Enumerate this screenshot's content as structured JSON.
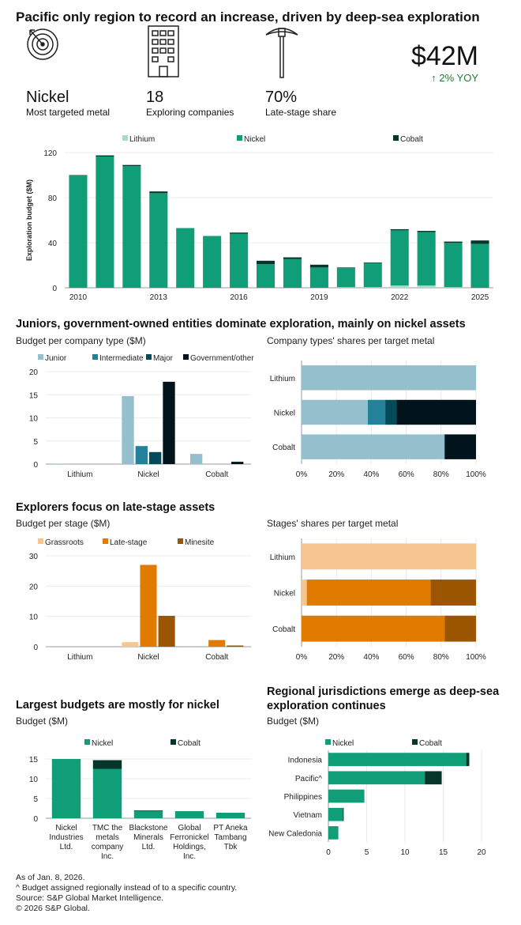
{
  "title": "Pacific only region to record an increase, driven by deep-sea exploration",
  "kpis": [
    {
      "icon": "target-icon",
      "value": "Nickel",
      "label": "Most targeted metal"
    },
    {
      "icon": "building-icon",
      "value": "18",
      "label": "Exploring companies"
    },
    {
      "icon": "pickaxe-icon",
      "value": "70%",
      "label": "Late-stage share"
    }
  ],
  "headline": {
    "value": "$42M",
    "change": "↑ 2% YOY",
    "change_color": "#1e7d32"
  },
  "colors": {
    "lithium": "#a3dcc8",
    "nickel": "#0f9e78",
    "cobalt": "#06352a",
    "junior": "#93c0cc",
    "intermediate": "#23829a",
    "major": "#034a5a",
    "government": "#02141b",
    "grassroots": "#f5c690",
    "late": "#e07b00",
    "minesite": "#9c5500"
  },
  "section2": {
    "title": "Juniors, government-owned entities dominate exploration, mainly on nickel assets",
    "left_sub": "Budget per company type ($M)",
    "right_sub": "Company types' shares per target metal"
  },
  "section3": {
    "title": "Explorers focus on late-stage assets",
    "left_sub": "Budget per stage ($M)",
    "right_sub": "Stages' shares per target metal"
  },
  "section4": {
    "left_title": "Largest budgets are mostly for nickel",
    "left_sub": "Budget ($M)",
    "right_title": "Regional jurisdictions emerge as deep-sea exploration continues",
    "right_sub": "Budget ($M)"
  },
  "footer": [
    "As of Jan. 8, 2026.",
    "^ Budget assigned regionally instead of to a specific country.",
    "Source: S&P Global Market Intelligence.",
    "© 2026 S&P Global."
  ],
  "chart_data": [
    {
      "id": "main",
      "type": "bar",
      "stacked": true,
      "ylabel": "Exploration budget ($M)",
      "ylim": [
        0,
        120
      ],
      "yticks": [
        0,
        40,
        80,
        120
      ],
      "categories": [
        "2010",
        "2011",
        "2012",
        "2013",
        "2014",
        "2015",
        "2016",
        "2017",
        "2018",
        "2019",
        "2020",
        "2021",
        "2022",
        "2023",
        "2024",
        "2025"
      ],
      "xtick_labels": [
        "2010",
        "",
        "",
        "2013",
        "",
        "",
        "2016",
        "",
        "",
        "2019",
        "",
        "",
        "2022",
        "",
        "",
        "2025"
      ],
      "series": [
        {
          "name": "Lithium",
          "color": "#a3dcc8",
          "values": [
            0,
            0,
            0,
            0,
            0,
            0,
            0,
            0,
            0,
            0,
            0.5,
            0.5,
            2,
            2,
            0.5,
            0
          ]
        },
        {
          "name": "Nickel",
          "color": "#0f9e78",
          "values": [
            99.5,
            116.5,
            108,
            84,
            53,
            46,
            48,
            21,
            25.5,
            18,
            17,
            21.5,
            49,
            47.5,
            39.5,
            39
          ]
        },
        {
          "name": "Cobalt",
          "color": "#06352a",
          "values": [
            0.5,
            1,
            1,
            1.5,
            0,
            0,
            1,
            3,
            1.5,
            2.5,
            0.5,
            0.5,
            1,
            1,
            1,
            3
          ]
        }
      ],
      "legend": "top",
      "grid": true
    },
    {
      "id": "ctype",
      "type": "bar",
      "grouped": true,
      "ylim": [
        0,
        20
      ],
      "yticks": [
        0,
        5,
        10,
        15,
        20
      ],
      "categories": [
        "Lithium",
        "Nickel",
        "Cobalt"
      ],
      "series": [
        {
          "name": "Junior",
          "color": "#93c0cc",
          "values": [
            0.1,
            14.7,
            2.2
          ]
        },
        {
          "name": "Intermediate",
          "color": "#23829a",
          "values": [
            0,
            3.9,
            0
          ]
        },
        {
          "name": "Major",
          "color": "#034a5a",
          "values": [
            0,
            2.6,
            0
          ]
        },
        {
          "name": "Government/other",
          "color": "#02141b",
          "values": [
            0,
            17.8,
            0.5
          ]
        }
      ],
      "legend": "top",
      "grid": true
    },
    {
      "id": "cshare",
      "type": "bar",
      "orientation": "horizontal",
      "stacked": true,
      "xlim": [
        0,
        100
      ],
      "xticks": [
        "0%",
        "20%",
        "40%",
        "60%",
        "80%",
        "100%"
      ],
      "categories": [
        "Lithium",
        "Nickel",
        "Cobalt"
      ],
      "series": [
        {
          "name": "Junior",
          "color": "#93c0cc",
          "values": [
            100,
            38,
            82
          ]
        },
        {
          "name": "Intermediate",
          "color": "#23829a",
          "values": [
            0,
            10,
            0
          ]
        },
        {
          "name": "Major",
          "color": "#034a5a",
          "values": [
            0,
            6.5,
            0
          ]
        },
        {
          "name": "Government/other",
          "color": "#02141b",
          "values": [
            0,
            45.5,
            18
          ]
        }
      ],
      "grid": true
    },
    {
      "id": "stage",
      "type": "bar",
      "grouped": true,
      "ylim": [
        0,
        30
      ],
      "yticks": [
        0,
        10,
        20,
        30
      ],
      "categories": [
        "Lithium",
        "Nickel",
        "Cobalt"
      ],
      "series": [
        {
          "name": "Grassroots",
          "color": "#f5c690",
          "values": [
            0,
            1.5,
            0
          ]
        },
        {
          "name": "Late-stage",
          "color": "#e07b00",
          "values": [
            0,
            27,
            2.2
          ]
        },
        {
          "name": "Minesite",
          "color": "#9c5500",
          "values": [
            0,
            10.2,
            0.4
          ]
        }
      ],
      "legend": "top",
      "grid": true
    },
    {
      "id": "sshare",
      "type": "bar",
      "orientation": "horizontal",
      "stacked": true,
      "xlim": [
        0,
        100
      ],
      "xticks": [
        "0%",
        "20%",
        "40%",
        "60%",
        "80%",
        "100%"
      ],
      "categories": [
        "Lithium",
        "Nickel",
        "Cobalt"
      ],
      "series": [
        {
          "name": "Grassroots",
          "color": "#f5c690",
          "values": [
            100,
            3,
            0
          ]
        },
        {
          "name": "Late-stage",
          "color": "#e07b00",
          "values": [
            0,
            71,
            82
          ]
        },
        {
          "name": "Minesite",
          "color": "#9c5500",
          "values": [
            0,
            26,
            18
          ]
        }
      ],
      "grid": true
    },
    {
      "id": "company",
      "type": "bar",
      "stacked": true,
      "ylim": [
        0,
        15
      ],
      "yticks": [
        0,
        5,
        10,
        15
      ],
      "categories": [
        "Nickel Industries Ltd.",
        "TMC the metals company Inc.",
        "Blackstone Minerals Ltd.",
        "Global Ferronickel Holdings, Inc.",
        "PT Aneka Tambang Tbk"
      ],
      "category_lines": [
        [
          "Nickel",
          "Industries",
          "Ltd."
        ],
        [
          "TMC the",
          "metals",
          "company",
          "Inc."
        ],
        [
          "Blackstone",
          "Minerals",
          "Ltd."
        ],
        [
          "Global",
          "Ferronickel",
          "Holdings,",
          "Inc."
        ],
        [
          "PT Aneka",
          "Tambang",
          "Tbk"
        ]
      ],
      "series": [
        {
          "name": "Nickel",
          "color": "#0f9e78",
          "values": [
            15,
            12.5,
            1.9,
            1.8,
            1.4
          ]
        },
        {
          "name": "Cobalt",
          "color": "#06352a",
          "values": [
            0,
            2.2,
            0.1,
            0,
            0
          ]
        }
      ],
      "legend": "top",
      "grid": true
    },
    {
      "id": "region",
      "type": "bar",
      "orientation": "horizontal",
      "stacked": true,
      "xlim": [
        0,
        20
      ],
      "xticks": [
        "0",
        "5",
        "10",
        "15",
        "20"
      ],
      "categories": [
        "Indonesia",
        "Pacific^",
        "Philippines",
        "Vietnam",
        "New Caledonia"
      ],
      "series": [
        {
          "name": "Nickel",
          "color": "#0f9e78",
          "values": [
            18,
            12.6,
            4.7,
            1.9,
            1.3
          ]
        },
        {
          "name": "Cobalt",
          "color": "#06352a",
          "values": [
            0.4,
            2.2,
            0,
            0.1,
            0
          ]
        }
      ],
      "legend": "top",
      "grid": true
    }
  ]
}
